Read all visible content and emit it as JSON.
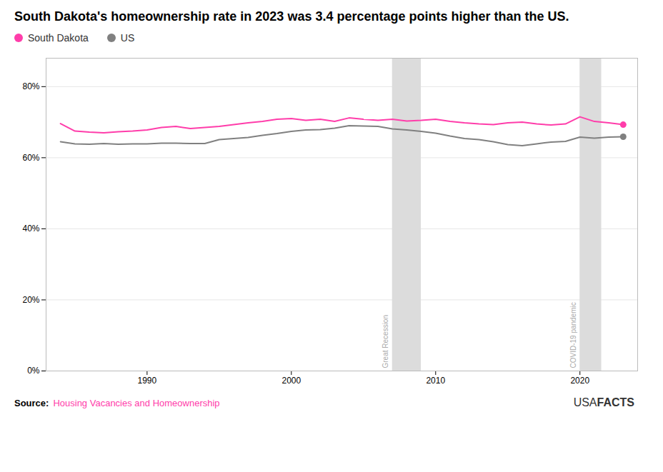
{
  "chart_data": {
    "type": "line",
    "title": "South Dakota's homeownership rate in 2023 was 3.4 percentage points higher than the US.",
    "x": [
      1984,
      1985,
      1986,
      1987,
      1988,
      1989,
      1990,
      1991,
      1992,
      1993,
      1994,
      1995,
      1996,
      1997,
      1998,
      1999,
      2000,
      2001,
      2002,
      2003,
      2004,
      2005,
      2006,
      2007,
      2008,
      2009,
      2010,
      2011,
      2012,
      2013,
      2014,
      2015,
      2016,
      2017,
      2018,
      2019,
      2020,
      2021,
      2022,
      2023
    ],
    "series": [
      {
        "name": "South Dakota",
        "color": "#FF3DAA",
        "values": [
          69.6,
          67.5,
          67.2,
          67.0,
          67.3,
          67.5,
          67.8,
          68.5,
          68.8,
          68.2,
          68.5,
          68.8,
          69.3,
          69.8,
          70.2,
          70.8,
          71.0,
          70.5,
          70.8,
          70.2,
          71.2,
          70.8,
          70.5,
          70.8,
          70.3,
          70.5,
          70.8,
          70.2,
          69.8,
          69.5,
          69.3,
          69.8,
          70.0,
          69.5,
          69.2,
          69.5,
          71.5,
          70.2,
          69.8,
          69.3
        ]
      },
      {
        "name": "US",
        "color": "#808080",
        "values": [
          64.5,
          63.9,
          63.8,
          64.0,
          63.8,
          63.9,
          63.9,
          64.1,
          64.1,
          64.0,
          64.0,
          65.1,
          65.4,
          65.7,
          66.3,
          66.8,
          67.4,
          67.8,
          67.9,
          68.3,
          69.0,
          68.9,
          68.8,
          68.1,
          67.8,
          67.4,
          66.9,
          66.1,
          65.4,
          65.1,
          64.5,
          63.7,
          63.4,
          63.9,
          64.4,
          64.6,
          65.8,
          65.5,
          65.8,
          65.9
        ]
      }
    ],
    "xlim": [
      1983,
      2024
    ],
    "xticks": [
      1990,
      2000,
      2010,
      2020
    ],
    "ylim": [
      0,
      88
    ],
    "yticks": [
      {
        "value": 0,
        "label": "0%"
      },
      {
        "value": 20,
        "label": "20%"
      },
      {
        "value": 40,
        "label": "40%"
      },
      {
        "value": 60,
        "label": "60%"
      },
      {
        "value": 80,
        "label": "80%"
      }
    ],
    "grid": "y",
    "legend": "top-left",
    "shaded_regions": [
      {
        "label": "Great Recession",
        "x_start": 2007,
        "x_end": 2009,
        "color": "#DCDCDC",
        "text_color": "#AAAAAA"
      },
      {
        "label": "COVID-19 pandemic",
        "x_start": 2020,
        "x_end": 2021.5,
        "color": "#DCDCDC",
        "text_color": "#AAAAAA"
      }
    ],
    "source_label": "Source:",
    "source": "Housing Vacancies and Homeownership",
    "source_color": "#FF3DAA",
    "logo": [
      "USA",
      "FACTS"
    ]
  }
}
